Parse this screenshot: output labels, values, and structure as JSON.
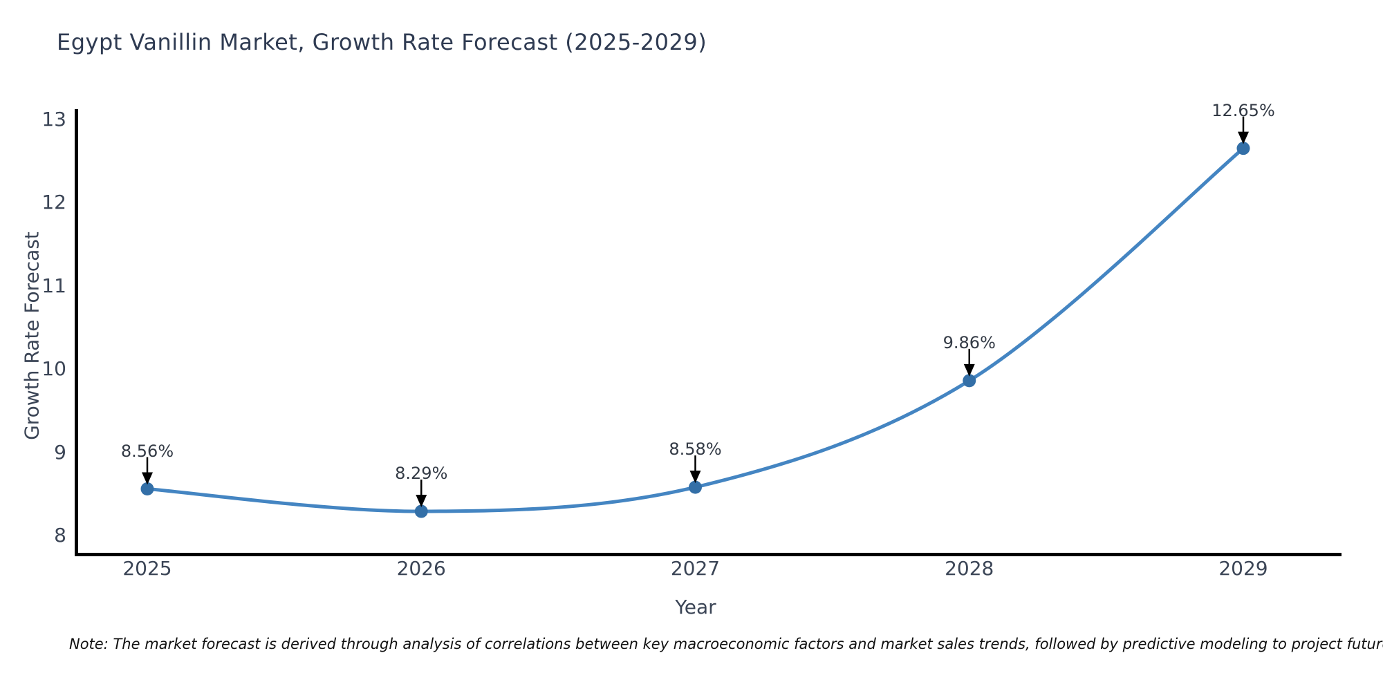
{
  "chart_data": {
    "type": "line",
    "title": "Egypt Vanillin Market, Growth Rate Forecast (2025-2029)",
    "xlabel": "Year",
    "ylabel": "Growth Rate Forecast",
    "categories": [
      "2025",
      "2026",
      "2027",
      "2028",
      "2029"
    ],
    "values": [
      8.56,
      8.29,
      8.58,
      9.86,
      12.65
    ],
    "point_labels": [
      "8.56%",
      "8.29%",
      "8.58%",
      "9.86%",
      "12.65%"
    ],
    "yticks": [
      8,
      9,
      10,
      11,
      12,
      13
    ],
    "ylim": [
      7.75,
      13.15
    ],
    "grid": false,
    "legend": "none",
    "marker_style": "circle",
    "annotation_arrows": true,
    "note": "Note: The market forecast is derived through analysis of correlations between key macroeconomic factors and market sales trends, followed by predictive modeling to project future sales.",
    "colors": {
      "line": "#4485c2",
      "marker": "#336fa7",
      "arrow": "#000000",
      "spine": "#000000",
      "title_text": "#2f3b52",
      "tick_text": "#3b4556",
      "annotation_text": "#333a45",
      "note_text": "#111111",
      "background": "#ffffff"
    }
  }
}
